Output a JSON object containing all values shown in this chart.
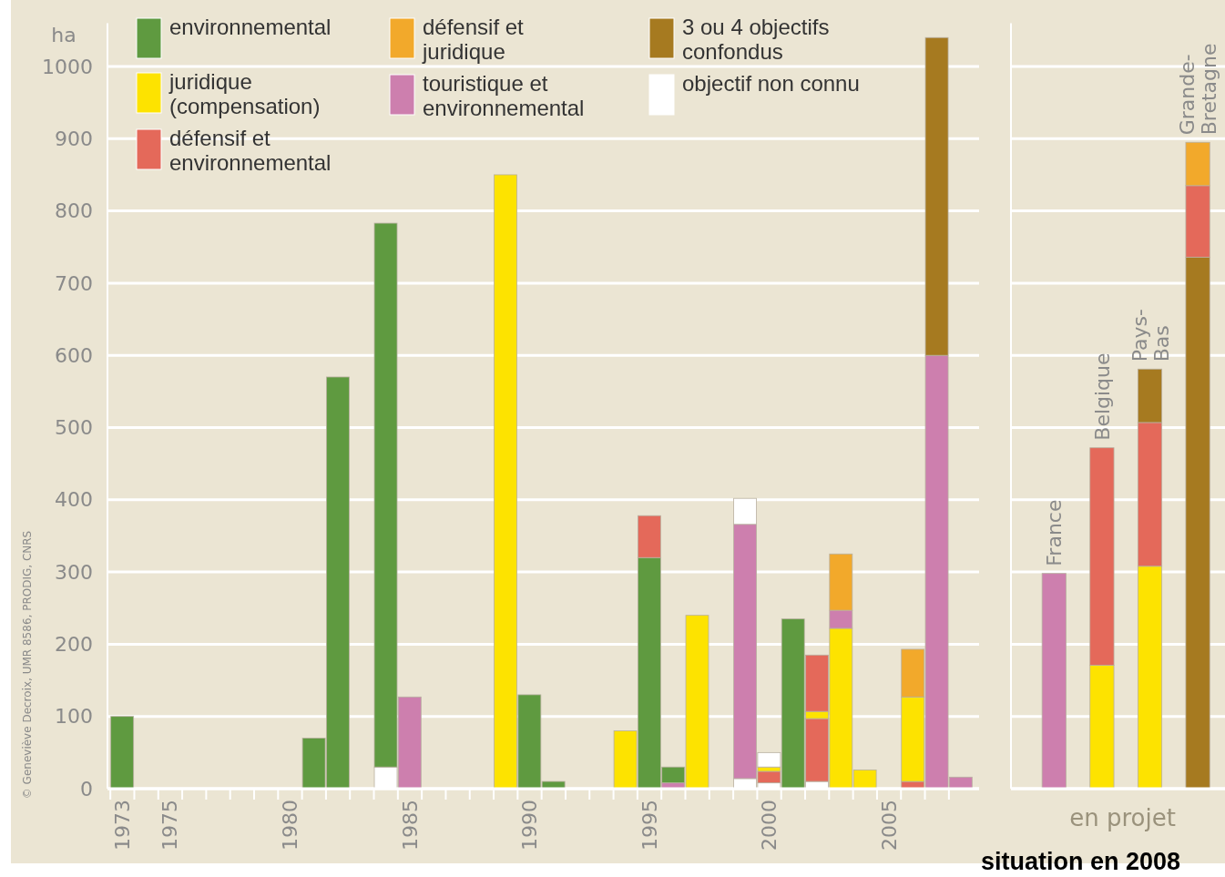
{
  "chart_data": [
    {
      "type": "bar",
      "stacked": true,
      "ylabel": "ha",
      "ylim": [
        0,
        1060
      ],
      "yticks": [
        0,
        100,
        200,
        300,
        400,
        500,
        600,
        700,
        800,
        900,
        1000
      ],
      "grid": "y",
      "legend": "top left",
      "categories": [
        "1973",
        null,
        "1975",
        null,
        null,
        null,
        null,
        "1980",
        null,
        null,
        null,
        null,
        "1985",
        null,
        null,
        null,
        null,
        "1990",
        null,
        null,
        null,
        null,
        "1995",
        null,
        null,
        null,
        null,
        "2000",
        null,
        null,
        null,
        null,
        "2005",
        null,
        null,
        null
      ],
      "series": [
        {
          "color": "#ffffff",
          "values": [
            null,
            null,
            null,
            null,
            null,
            null,
            null,
            null,
            null,
            null,
            null,
            30,
            null,
            null,
            null,
            null,
            null,
            null,
            null,
            null,
            null,
            null,
            null,
            null,
            null,
            null,
            14,
            8,
            null,
            10,
            null,
            null,
            null,
            null,
            null,
            null
          ]
        },
        {
          "color": "#e4695a",
          "values": [
            null,
            null,
            null,
            null,
            null,
            null,
            null,
            null,
            null,
            null,
            null,
            null,
            null,
            null,
            null,
            null,
            null,
            null,
            null,
            null,
            null,
            null,
            null,
            null,
            null,
            null,
            null,
            16,
            null,
            87,
            null,
            null,
            null,
            10,
            null,
            null
          ]
        },
        {
          "color": "#cd7fae",
          "values": [
            null,
            null,
            null,
            null,
            null,
            null,
            null,
            null,
            null,
            null,
            null,
            null,
            null,
            null,
            null,
            null,
            null,
            null,
            null,
            null,
            null,
            null,
            null,
            8,
            null,
            null,
            null,
            null,
            null,
            null,
            null,
            null,
            null,
            null,
            null,
            null
          ]
        },
        {
          "name": "environnemental",
          "color": "#5f9a40",
          "values": [
            100,
            null,
            null,
            null,
            null,
            null,
            null,
            null,
            70,
            570,
            null,
            753,
            null,
            null,
            null,
            null,
            null,
            130,
            10,
            null,
            null,
            null,
            320,
            22,
            null,
            null,
            null,
            null,
            235,
            null,
            null,
            null,
            null,
            null,
            null,
            null
          ]
        },
        {
          "name": "juridique (compensation)",
          "color": "#fde300",
          "values": [
            null,
            null,
            null,
            null,
            null,
            null,
            null,
            null,
            null,
            null,
            null,
            null,
            null,
            null,
            null,
            null,
            850,
            null,
            null,
            null,
            null,
            80,
            null,
            null,
            240,
            null,
            null,
            6,
            null,
            10,
            222,
            26,
            null,
            117,
            null,
            null
          ]
        },
        {
          "name": "touristique et environnemental",
          "color": "#cd7fae",
          "values": [
            null,
            null,
            null,
            null,
            null,
            null,
            null,
            null,
            null,
            null,
            null,
            null,
            127,
            null,
            null,
            null,
            null,
            null,
            null,
            null,
            null,
            null,
            null,
            null,
            null,
            null,
            352,
            null,
            null,
            null,
            25,
            null,
            null,
            null,
            600,
            16
          ]
        },
        {
          "name": "défensif et environnemental",
          "color": "#e4695a",
          "values": [
            null,
            null,
            null,
            null,
            null,
            null,
            null,
            null,
            null,
            null,
            null,
            null,
            null,
            null,
            null,
            null,
            null,
            null,
            null,
            null,
            null,
            null,
            58,
            null,
            null,
            null,
            null,
            null,
            null,
            78,
            null,
            null,
            null,
            null,
            null,
            null
          ]
        },
        {
          "name": "défensif et juridique",
          "color": "#f2a92b",
          "values": [
            null,
            null,
            null,
            null,
            null,
            null,
            null,
            null,
            null,
            null,
            null,
            null,
            null,
            null,
            null,
            null,
            null,
            null,
            null,
            null,
            null,
            null,
            null,
            null,
            null,
            null,
            null,
            null,
            null,
            null,
            78,
            null,
            null,
            66,
            null,
            null
          ]
        },
        {
          "name": "3 ou 4 objectifs confondus",
          "color": "#a67a20",
          "values": [
            null,
            null,
            null,
            null,
            null,
            null,
            null,
            null,
            null,
            null,
            null,
            null,
            null,
            null,
            null,
            null,
            null,
            null,
            null,
            null,
            null,
            null,
            null,
            null,
            null,
            null,
            null,
            null,
            null,
            null,
            null,
            null,
            null,
            null,
            440,
            null
          ]
        },
        {
          "name": "objectif non connu",
          "color": "#ffffff",
          "values": [
            null,
            null,
            null,
            null,
            null,
            null,
            null,
            null,
            null,
            null,
            null,
            null,
            null,
            null,
            null,
            null,
            null,
            null,
            null,
            null,
            null,
            null,
            null,
            null,
            null,
            null,
            36,
            20,
            null,
            null,
            null,
            null,
            null,
            null,
            null,
            null
          ]
        }
      ],
      "annotations": [
        "© Geneviève Decroix, UMR 8586, PRODIG, CNRS"
      ]
    },
    {
      "type": "bar",
      "stacked": true,
      "xlabel": "en projet",
      "ylim": [
        0,
        1060
      ],
      "yticks": [
        0,
        100,
        200,
        300,
        400,
        500,
        600,
        700,
        800,
        900,
        1000
      ],
      "grid": "y",
      "tick_labels": "x",
      "categories": [
        "France",
        "Belgique",
        "Pays-Bas",
        "Grande-Bretagne"
      ],
      "series": [
        {
          "color": "#a67a20",
          "values": [
            null,
            null,
            null,
            736
          ]
        },
        {
          "color": "#cd7fae",
          "values": [
            298,
            null,
            null,
            null
          ]
        },
        {
          "color": "#fde300",
          "values": [
            null,
            171,
            308,
            null
          ]
        },
        {
          "color": "#e4695a",
          "values": [
            null,
            301,
            199,
            99
          ]
        },
        {
          "color": "#f2a92b",
          "values": [
            null,
            null,
            null,
            60
          ]
        },
        {
          "color": "#a67a20",
          "values": [
            null,
            null,
            74,
            null
          ]
        }
      ],
      "annotations": [
        "situation en 2008"
      ]
    }
  ]
}
